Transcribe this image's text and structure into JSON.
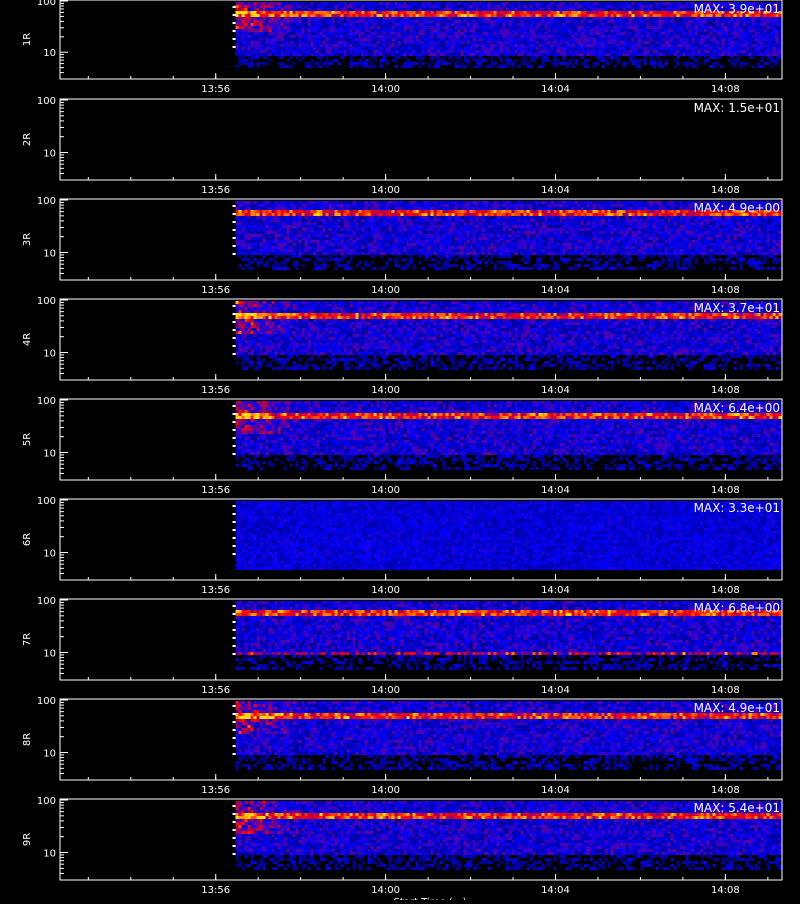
{
  "chart_data": {
    "type": "heatmap",
    "x_ticks": [
      "13:56",
      "14:00",
      "14:04",
      "14:08"
    ],
    "y_ticks": [
      "100",
      "10"
    ],
    "x_time_range": [
      "13:52:20",
      "14:09:20"
    ],
    "data_start_time": "13:56:28",
    "y_range": [
      3,
      100
    ],
    "y_scale": "log",
    "bands": [
      {
        "x_axis_label": "Start Time (…)"
      }
    ],
    "panels": [
      {
        "label": "1R",
        "max_text": "MAX: 3.9e+01",
        "max_value": 39,
        "colors": [
          "#0000ff",
          "#ff0000",
          "#ffff00"
        ],
        "hot_y": 60
      },
      {
        "label": "2R",
        "max_text": "MAX: 1.5e+01",
        "max_value": 15,
        "colors": [
          "#0000ff",
          "#ff0000",
          "#ffff00"
        ],
        "hot_y": 0
      },
      {
        "label": "3R",
        "max_text": "MAX: 4.9e+00",
        "max_value": 4.9,
        "colors": [
          "#0000ff",
          "#ff0000",
          "#ffff00"
        ],
        "hot_y": 60
      },
      {
        "label": "4R",
        "max_text": "MAX: 3.7e+01",
        "max_value": 37,
        "colors": [
          "#0000ff",
          "#ff0000",
          "#ffff00"
        ],
        "hot_y": 55
      },
      {
        "label": "5R",
        "max_text": "MAX: 6.4e+00",
        "max_value": 6.4,
        "colors": [
          "#0000ff",
          "#ff0000",
          "#ffff00"
        ],
        "hot_y": 55
      },
      {
        "label": "6R",
        "max_text": "MAX: 3.3e+01",
        "max_value": 33,
        "colors": [
          "#0000ff",
          "#ff0000",
          "#ffff00"
        ],
        "hot_y": 0
      },
      {
        "label": "7R",
        "max_text": "MAX: 6.8e+00",
        "max_value": 6.8,
        "colors": [
          "#0000ff",
          "#ff0000",
          "#ffff00"
        ],
        "hot_y": 60
      },
      {
        "label": "8R",
        "max_text": "MAX: 4.9e+01",
        "max_value": 49,
        "colors": [
          "#0000ff",
          "#ff0000",
          "#ffff00"
        ],
        "hot_y": 55
      },
      {
        "label": "9R",
        "max_text": "MAX: 5.4e+01",
        "max_value": 54,
        "colors": [
          "#0000ff",
          "#ff0000",
          "#ffff00"
        ],
        "hot_y": 55
      }
    ]
  }
}
